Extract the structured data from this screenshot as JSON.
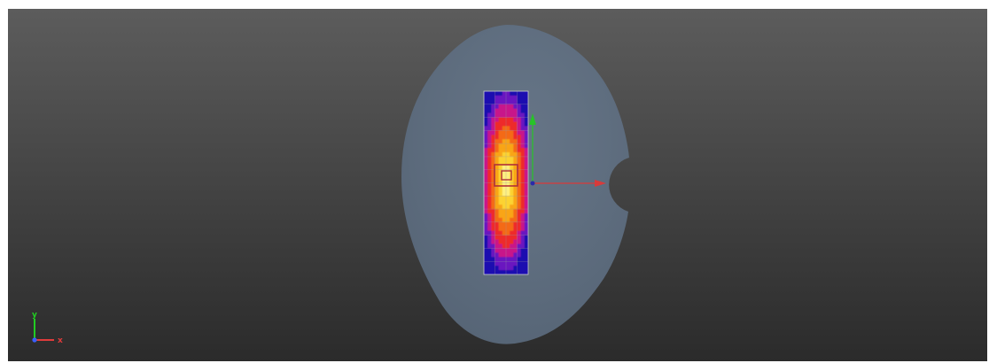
{
  "viewport": {
    "background_top": "#5c5c5c",
    "background_bottom": "#2b2b2b",
    "domain_fill": "#5b6b7e",
    "mesh_line_color": "#9a9aa5"
  },
  "triad": {
    "x_label": "x",
    "y_label": "y",
    "x_color": "#e03b3b",
    "y_color": "#22cc22",
    "z_color": "#3a5fff"
  },
  "gizmo": {
    "x_arrow_color": "#d93a3a",
    "y_arrow_color": "#27c427",
    "origin_color": "#2a2aaa"
  },
  "heatmap": {
    "rows": 14,
    "cols": 4,
    "palette": [
      "#1a10b0",
      "#6a18c0",
      "#c8188a",
      "#ee2a2a",
      "#f46a18",
      "#f9a518",
      "#fcd330",
      "#fff080",
      "#fffbe0"
    ]
  }
}
